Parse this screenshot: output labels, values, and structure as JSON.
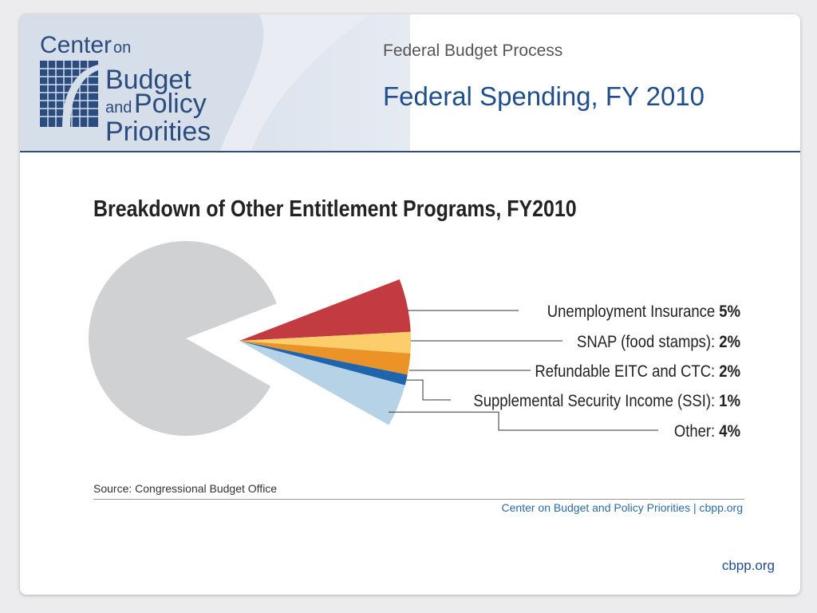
{
  "header": {
    "logo_text": "Center on Budget and Policy Priorities",
    "subtitle": "Federal Budget Process",
    "title": "Federal Spending, FY 2010"
  },
  "chart_data": {
    "type": "pie",
    "title": "Breakdown of Other Entitlement Programs, FY2010",
    "slices": [
      {
        "label": "Unemployment Insurance",
        "value": 5,
        "value_label": "5%",
        "color": "#c23b41",
        "exploded": true
      },
      {
        "label": "SNAP (food stamps):",
        "value": 2,
        "value_label": "2%",
        "color": "#fbcd6b",
        "exploded": true
      },
      {
        "label": "Refundable EITC and CTC:",
        "value": 2,
        "value_label": "2%",
        "color": "#ec9328",
        "exploded": true
      },
      {
        "label": "Supplemental Security Income (SSI):",
        "value": 1,
        "value_label": "1%",
        "color": "#1f65ad",
        "exploded": true
      },
      {
        "label": "Other:",
        "value": 4,
        "value_label": "4%",
        "color": "#b5d2e6",
        "exploded": true
      },
      {
        "label": "",
        "value": 86,
        "color": "#cfd1d3",
        "exploded": false
      }
    ],
    "source": "Source:  Congressional Budget Office",
    "credit": "Center on Budget and Policy Priorities | cbpp.org"
  },
  "footer": {
    "url": "cbpp.org"
  }
}
